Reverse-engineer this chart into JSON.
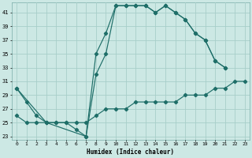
{
  "xlabel": "Humidex (Indice chaleur)",
  "bg_color": "#cce8e4",
  "grid_color": "#a8cec9",
  "line_color": "#1e6e68",
  "xlim": [
    -0.5,
    23.5
  ],
  "ylim": [
    22.5,
    42.5
  ],
  "xticks": [
    0,
    1,
    2,
    3,
    4,
    5,
    6,
    7,
    8,
    9,
    10,
    11,
    12,
    13,
    14,
    15,
    16,
    17,
    18,
    19,
    20,
    21,
    22,
    23
  ],
  "yticks": [
    23,
    25,
    27,
    29,
    31,
    33,
    35,
    37,
    39,
    41
  ],
  "line1_x": [
    0,
    1,
    2,
    3,
    4,
    5,
    6,
    7,
    8,
    9,
    10,
    11,
    12,
    13,
    14,
    15,
    16,
    17,
    18,
    19,
    20,
    21
  ],
  "line1_y": [
    30,
    28,
    26,
    25,
    25,
    25,
    24,
    23,
    35,
    38,
    42,
    42,
    42,
    42,
    41,
    42,
    41,
    40,
    38,
    37,
    34,
    33
  ],
  "line2_x": [
    0,
    1,
    2,
    3,
    4,
    5,
    6,
    7,
    8,
    9,
    10,
    11,
    12,
    13,
    14,
    15,
    16,
    17,
    18,
    19,
    20,
    21,
    22,
    23
  ],
  "line2_y": [
    26,
    25,
    25,
    25,
    25,
    25,
    25,
    25,
    26,
    27,
    27,
    27,
    28,
    28,
    28,
    28,
    28,
    29,
    29,
    29,
    30,
    30,
    31,
    31
  ],
  "line3_x": [
    0,
    3,
    7,
    8,
    9,
    10,
    11,
    12,
    13,
    14,
    15,
    16,
    17,
    18,
    19,
    20,
    21
  ],
  "line3_y": [
    30,
    25,
    23,
    32,
    35,
    42,
    42,
    42,
    42,
    41,
    42,
    41,
    40,
    38,
    37,
    34,
    33
  ]
}
